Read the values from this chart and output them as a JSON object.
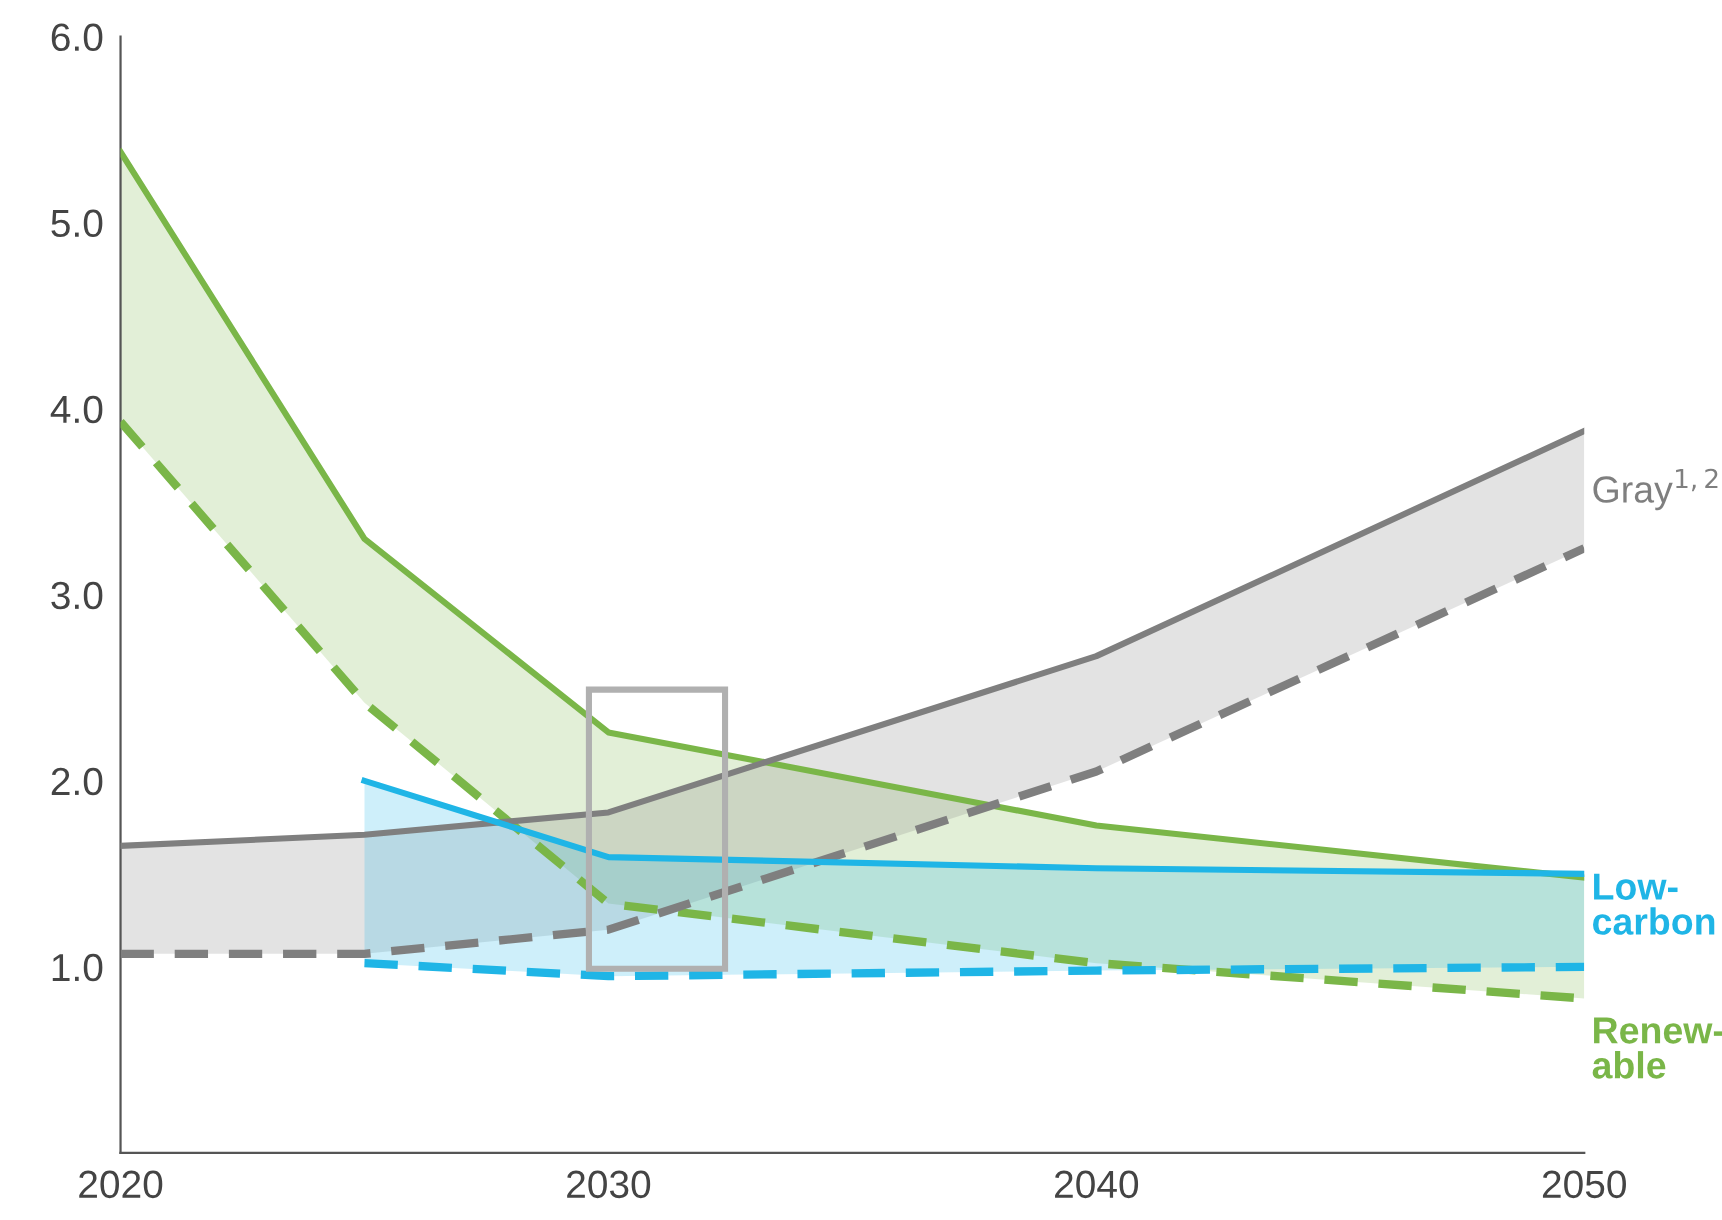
{
  "chart_data": {
    "type": "line",
    "xlim": [
      2020,
      2050
    ],
    "xticks": [
      2020,
      2030,
      2040,
      2050
    ],
    "ylim": [
      0,
      6
    ],
    "yticks": [
      {
        "value": 1,
        "label": "1.0"
      },
      {
        "value": 2,
        "label": "2.0"
      },
      {
        "value": 3,
        "label": "3.0"
      },
      {
        "value": 4,
        "label": "4.0"
      },
      {
        "value": 5,
        "label": "5.0"
      },
      {
        "value": 6,
        "label": "6.0"
      }
    ],
    "grid": false,
    "legend": false,
    "series": [
      {
        "name": "Renew-\nable",
        "color": "#7ab648",
        "line_style": "solid",
        "x": [
          2020,
          2025,
          2030,
          2040,
          2050
        ],
        "values": [
          5.38,
          3.3,
          2.26,
          1.76,
          1.48
        ],
        "lower": [
          3.93,
          2.42,
          1.34,
          1.02,
          0.83
        ],
        "upper": [
          5.38,
          3.3,
          2.26,
          1.76,
          1.48
        ]
      },
      {
        "color": "#7ab648",
        "line_style": "dashed",
        "x": [
          2020,
          2025,
          2030,
          2040,
          2050
        ],
        "values": [
          3.93,
          2.42,
          1.34,
          1.02,
          0.83
        ]
      },
      {
        "name": "Gray$^{1,2}$",
        "color": "#7f7f7f",
        "line_style": "solid",
        "x": [
          2020,
          2025,
          2030,
          2040,
          2050
        ],
        "values": [
          1.65,
          1.71,
          1.83,
          2.67,
          3.88
        ],
        "lower": [
          1.07,
          1.07,
          1.2,
          2.05,
          3.25
        ],
        "upper": [
          1.65,
          1.71,
          1.83,
          2.67,
          3.88
        ]
      },
      {
        "color": "#7f7f7f",
        "line_style": "dashed",
        "x": [
          2020,
          2025,
          2030,
          2040,
          2050
        ],
        "values": [
          1.07,
          1.07,
          1.2,
          2.05,
          3.25
        ]
      },
      {
        "name": "Low-\ncarbon",
        "color": "#1fb5e6",
        "line_style": "solid",
        "x": [
          2025,
          2030,
          2040,
          2050
        ],
        "values": [
          2.0,
          1.59,
          1.53,
          1.5
        ],
        "lower": [
          1.02,
          0.95,
          0.98,
          1.0
        ],
        "upper": [
          2.0,
          1.59,
          1.53,
          1.5
        ]
      },
      {
        "color": "#1fb5e6",
        "line_style": "dashed",
        "x": [
          2025,
          2030,
          2040,
          2050
        ],
        "values": [
          1.02,
          0.95,
          0.98,
          1.0
        ]
      }
    ]
  }
}
